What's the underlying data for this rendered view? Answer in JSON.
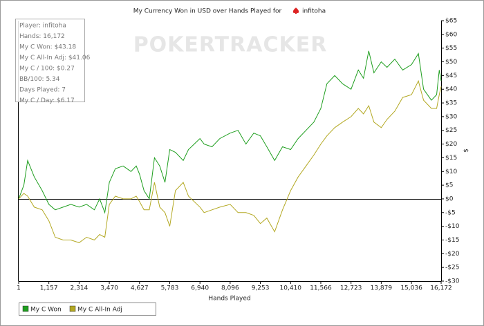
{
  "chart_data": {
    "type": "line",
    "title": "My Currency Won in USD over Hands Played for",
    "title_player": "infitoha",
    "watermark": "POKERTRACKER",
    "x_label": "Hands Played",
    "y_label": "$",
    "stats": [
      "Player: infitoha",
      "Hands: 16,172",
      "My C Won: $43.18",
      "My C All-In Adj: $41.06",
      "My C / 100: $0.27",
      "BB/100: 5.34",
      "Days Played: 7",
      "My C / Day: $6.17"
    ],
    "x": [
      1,
      200,
      344,
      600,
      900,
      1157,
      1400,
      1700,
      2000,
      2314,
      2600,
      2900,
      3100,
      3300,
      3470,
      3700,
      4000,
      4300,
      4500,
      4627,
      4800,
      5000,
      5200,
      5400,
      5600,
      5783,
      6000,
      6300,
      6500,
      6940,
      7100,
      7400,
      7700,
      8096,
      8400,
      8700,
      9000,
      9253,
      9500,
      9800,
      10100,
      10410,
      10700,
      11000,
      11300,
      11566,
      11800,
      12100,
      12400,
      12723,
      13000,
      13200,
      13400,
      13600,
      13879,
      14100,
      14400,
      14700,
      15036,
      15300,
      15500,
      15800,
      16000,
      16100,
      16172
    ],
    "series": [
      {
        "name": "My C Won",
        "color": "#1e9e1e",
        "values": [
          0,
          5,
          14,
          8,
          3,
          -2,
          -4,
          -3,
          -2,
          -3,
          -2,
          -4,
          0,
          -5,
          6,
          11,
          12,
          10,
          12,
          9,
          3,
          0,
          15,
          12,
          6,
          18,
          17,
          14,
          18,
          22,
          20,
          19,
          22,
          24,
          25,
          20,
          24,
          23,
          19,
          14,
          19,
          18,
          22,
          25,
          28,
          33,
          42,
          45,
          42,
          40,
          47,
          44,
          54,
          46,
          50,
          48,
          51,
          47,
          49,
          53,
          40,
          36,
          38,
          47,
          43
        ]
      },
      {
        "name": "My C All-In Adj",
        "color": "#b3a822",
        "values": [
          0,
          2,
          1,
          -3,
          -4,
          -8,
          -14,
          -15,
          -15,
          -16,
          -14,
          -15,
          -13,
          -14,
          -2,
          1,
          0,
          0,
          1,
          -1,
          -4,
          -4,
          6,
          -3,
          -5,
          -10,
          3,
          6,
          1,
          -3,
          -5,
          -4,
          -3,
          -2,
          -5,
          -5,
          -6,
          -9,
          -7,
          -12,
          -4,
          3,
          8,
          12,
          16,
          20,
          23,
          26,
          28,
          30,
          33,
          31,
          34,
          28,
          26,
          29,
          32,
          37,
          38,
          43,
          36,
          33,
          33,
          38,
          41
        ]
      }
    ],
    "xlim": [
      1,
      16172
    ],
    "xticks": [
      1,
      {
        "value": 1157,
        "label": "1,157"
      },
      {
        "value": 2314,
        "label": "2,314"
      },
      {
        "value": 3470,
        "label": "3,470"
      },
      {
        "value": 4627,
        "label": "4,627"
      },
      {
        "value": 5783,
        "label": "5,783"
      },
      {
        "value": 6940,
        "label": "6,940"
      },
      {
        "value": 8096,
        "label": "8,096"
      },
      {
        "value": 9253,
        "label": "9,253"
      },
      {
        "value": 10410,
        "label": "10,410"
      },
      {
        "value": 11566,
        "label": "11,566"
      },
      {
        "value": 12723,
        "label": "12,723"
      },
      {
        "value": 13879,
        "label": "13,879"
      },
      {
        "value": 15036,
        "label": "15,036"
      },
      {
        "value": 16172,
        "label": "16,172"
      }
    ],
    "ylim": [
      -30,
      65
    ],
    "yticks": [
      {
        "value": 65,
        "label": "$65"
      },
      {
        "value": 60,
        "label": "$60"
      },
      {
        "value": 55,
        "label": "$55"
      },
      {
        "value": 50,
        "label": "$50"
      },
      {
        "value": 45,
        "label": "$45"
      },
      {
        "value": 40,
        "label": "$40"
      },
      {
        "value": 35,
        "label": "$35"
      },
      {
        "value": 30,
        "label": "$30"
      },
      {
        "value": 25,
        "label": "$25"
      },
      {
        "value": 20,
        "label": "$20"
      },
      {
        "value": 15,
        "label": "$15"
      },
      {
        "value": 10,
        "label": "$10"
      },
      {
        "value": 5,
        "label": "$5"
      },
      {
        "value": 0,
        "label": "$0"
      },
      {
        "value": -5,
        "label": "-$5"
      },
      {
        "value": -10,
        "label": "-$10"
      },
      {
        "value": -15,
        "label": "-$15"
      },
      {
        "value": -20,
        "label": "-$20"
      },
      {
        "value": -25,
        "label": "-$25"
      },
      {
        "value": -30,
        "label": "-$30"
      }
    ],
    "zero_line": true,
    "grid": false,
    "legend": "bottom-left"
  }
}
